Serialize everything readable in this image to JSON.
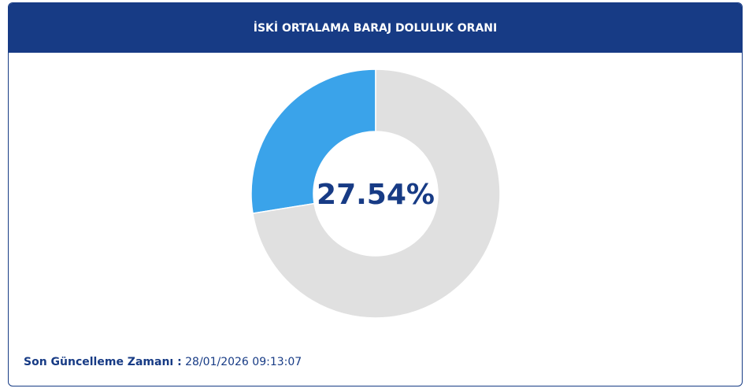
{
  "chart_data": {
    "type": "donut",
    "title": "İSKİ ORTALAMA BARAJ DOLULUK ORANI",
    "values": [
      27.54,
      72.46
    ],
    "value_labels": [
      "27.54%",
      null
    ],
    "colors": [
      "#3aa3ea",
      "#e0e0e0"
    ]
  },
  "footer": {
    "label": "Son Güncelleme Zamanı :",
    "timestamp": "28/01/2026 09:13:07"
  }
}
